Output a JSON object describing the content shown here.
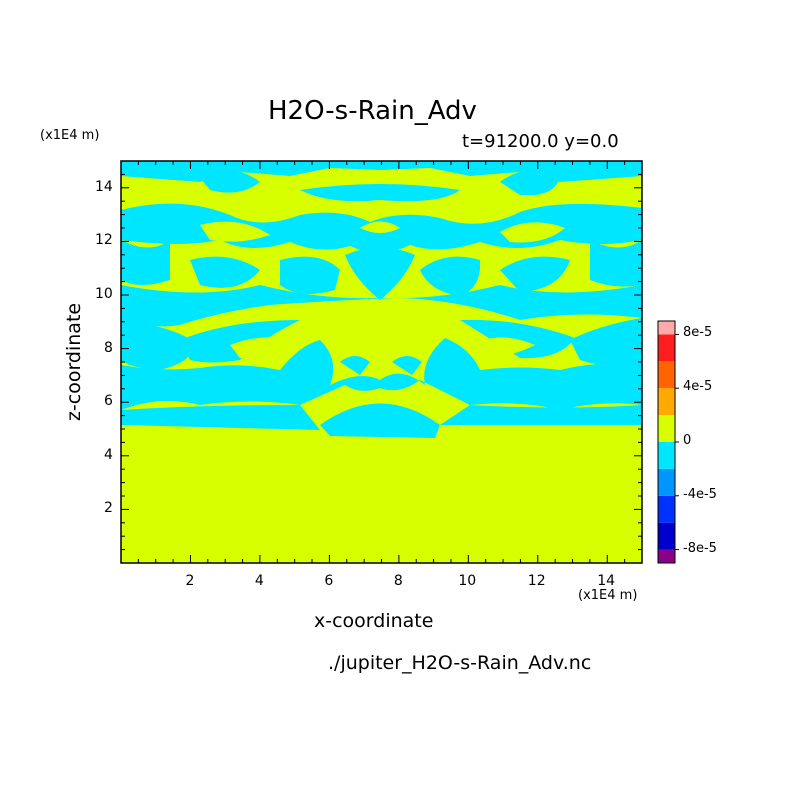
{
  "chart_data": {
    "type": "heatmap",
    "title": "H2O-s-Rain_Adv",
    "subtitle": "t=91200.0  y=0.0",
    "xlabel": "x-coordinate",
    "ylabel": "z-coordinate",
    "x_unit": "(x1E4 m)",
    "y_unit": "(x1E4 m)",
    "xlim": [
      0,
      15
    ],
    "ylim": [
      0,
      15
    ],
    "x_ticks": [
      "2",
      "4",
      "6",
      "8",
      "10",
      "12",
      "14"
    ],
    "y_ticks": [
      "2",
      "4",
      "6",
      "8",
      "10",
      "12",
      "14"
    ],
    "colorbar": {
      "levels": [
        -9e-05,
        -8e-05,
        -6e-05,
        -4e-05,
        -2e-05,
        0,
        2e-05,
        4e-05,
        6e-05,
        8e-05,
        9e-05
      ],
      "labels": [
        "-8e-5",
        "-4e-5",
        "0",
        "4e-5",
        "8e-5"
      ],
      "colors": [
        "#8b008b",
        "#0000cd",
        "#0032ff",
        "#0096ff",
        "#00e6ff",
        "#d7ff00",
        "#ffaa00",
        "#ff6400",
        "#ff1e1e",
        "#ffaaaa"
      ]
    },
    "field_note_colors": {
      "negative_small": "#00e6ff",
      "positive_small": "#d7ff00"
    }
  },
  "footer": {
    "filename": "./jupiter_H2O-s-Rain_Adv.nc"
  }
}
